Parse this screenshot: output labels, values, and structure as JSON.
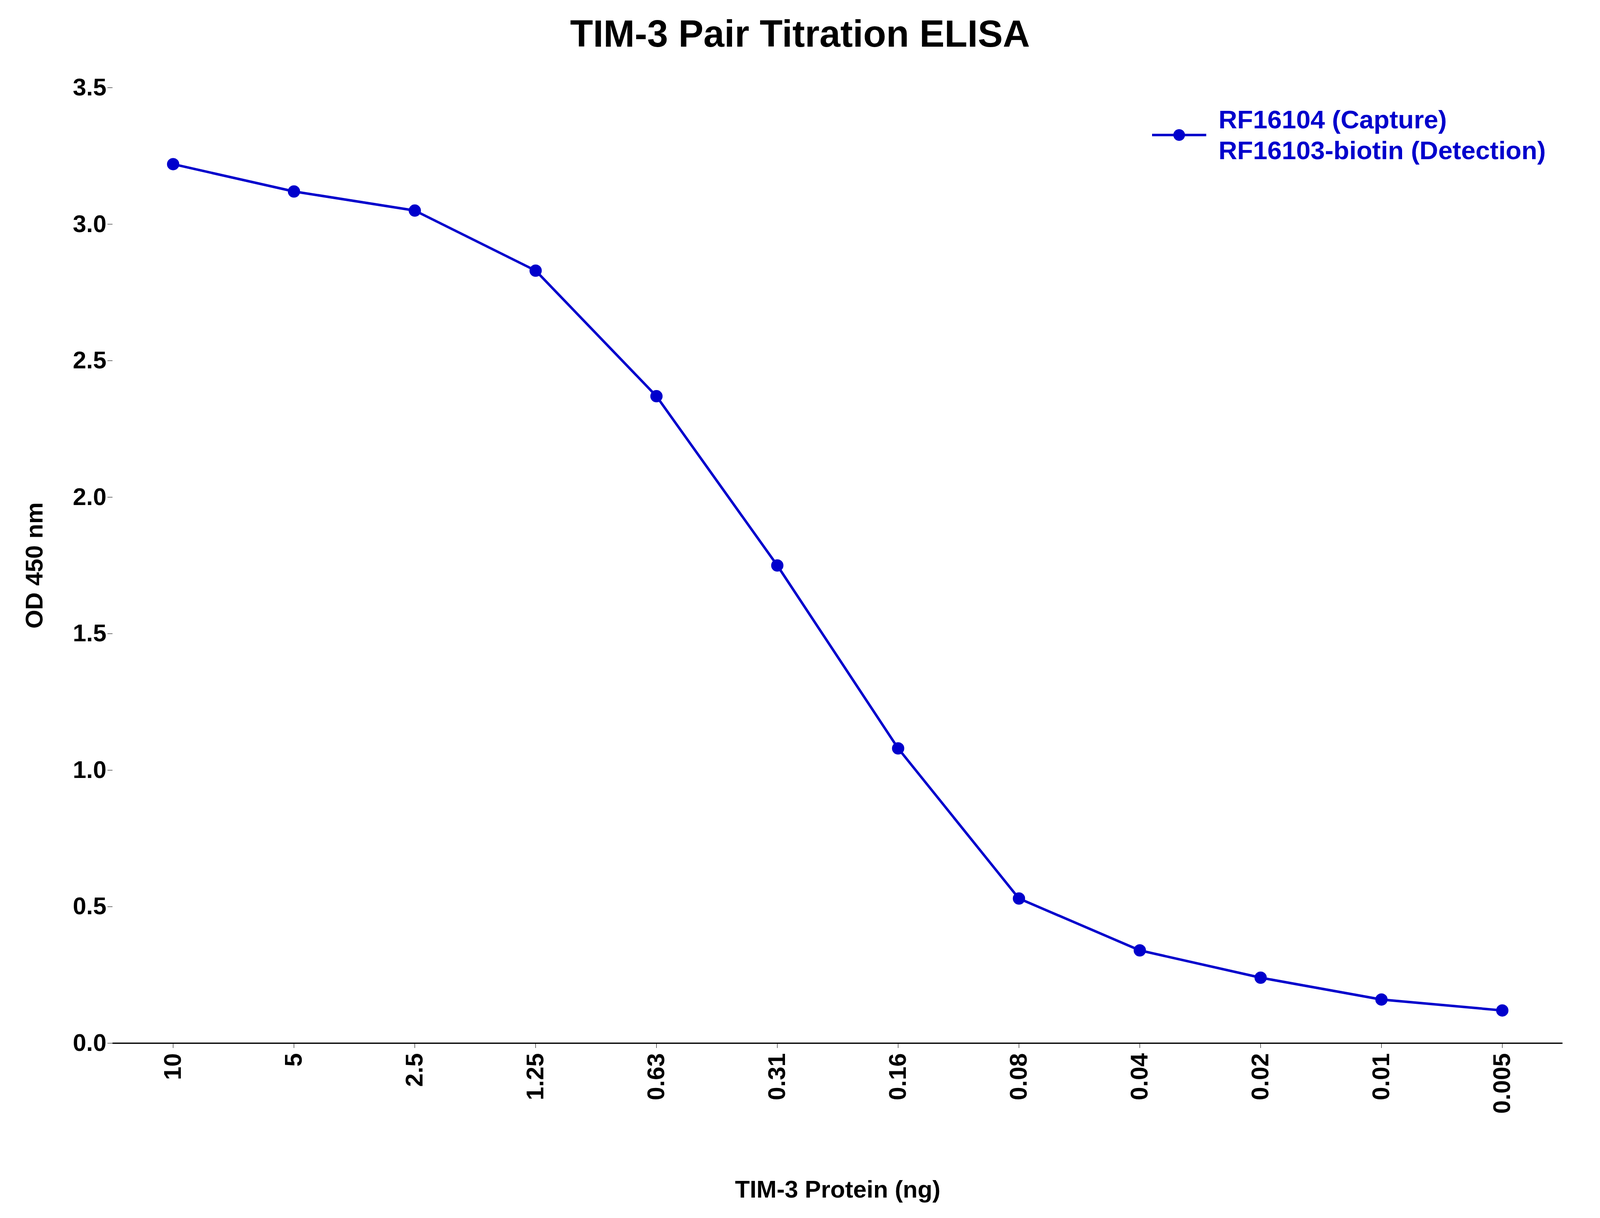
{
  "chart_data": {
    "type": "line",
    "title": "TIM-3 Pair Titration ELISA",
    "x_label": "TIM-3 Protein (ng)",
    "y_label": "OD 450 nm",
    "categories": [
      "10",
      "5",
      "2.5",
      "1.25",
      "0.63",
      "0.31",
      "0.16",
      "0.08",
      "0.04",
      "0.02",
      "0.01",
      "0.005"
    ],
    "series": [
      {
        "name": "RF16104 (Capture)\nRF16103-biotin (Detection)",
        "color": "#0000CC",
        "marker": "circle",
        "values": [
          3.22,
          3.12,
          3.05,
          2.83,
          2.37,
          1.75,
          1.08,
          0.53,
          0.34,
          0.24,
          0.16,
          0.12
        ]
      }
    ],
    "ylim": [
      0,
      3.5
    ],
    "yticks": [
      {
        "value": 0,
        "label": "0.0"
      },
      0.5,
      {
        "value": 1,
        "label": "1.0"
      },
      1.5,
      {
        "value": 2,
        "label": "2.0"
      },
      2.5,
      {
        "value": 3,
        "label": "3.0"
      },
      3.5
    ],
    "grid": false,
    "legend": "top-right"
  }
}
